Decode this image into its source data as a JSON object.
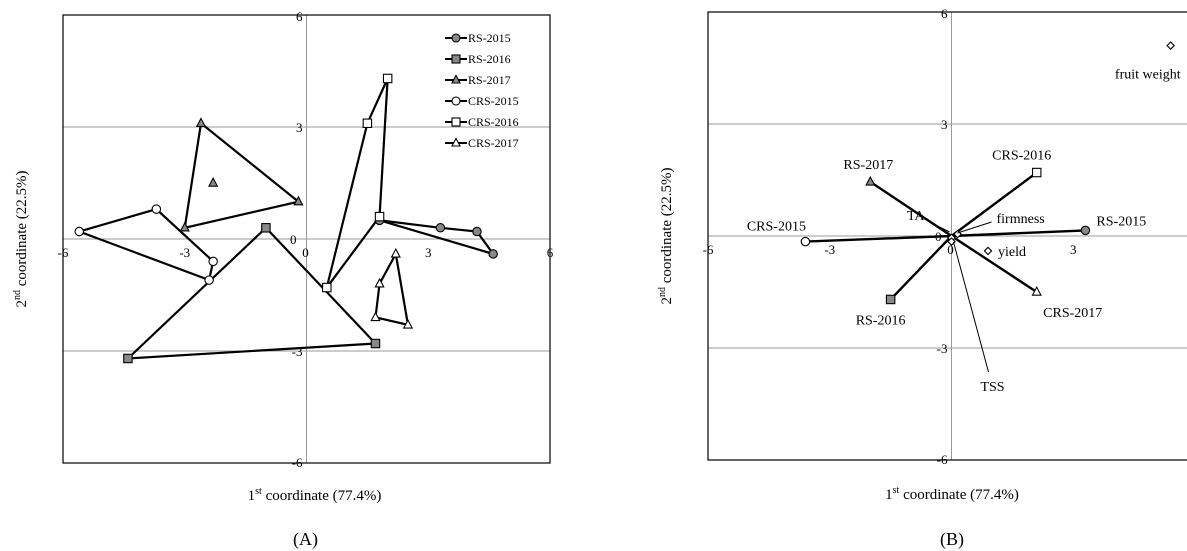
{
  "chart_data": [
    {
      "type": "scatter",
      "panel_label": "(A)",
      "xlabel": {
        "base": "1",
        "sup": "st",
        "rest": " coordinate (77.4%)"
      },
      "ylabel": {
        "base": "2",
        "sup": "nd",
        "rest": " coordinate (22.5%)"
      },
      "xlim": [
        -6,
        6
      ],
      "ylim": [
        -6,
        6
      ],
      "x_tick_labels": [
        "-6",
        "-3",
        "0",
        "3",
        "6"
      ],
      "y_tick_labels": [
        "6",
        "3",
        "0",
        "-3",
        "-6"
      ],
      "grid": true,
      "legend_position": "top-right",
      "series": [
        {
          "name": "RS-2015",
          "marker": "circle",
          "fill": "#888888",
          "points": [
            [
              1.8,
              0.5
            ],
            [
              3.3,
              0.3
            ],
            [
              4.2,
              0.2
            ],
            [
              4.6,
              -0.4
            ]
          ],
          "hull": [
            [
              1.8,
              0.5
            ],
            [
              3.3,
              0.3
            ],
            [
              4.2,
              0.2
            ],
            [
              4.6,
              -0.4
            ]
          ]
        },
        {
          "name": "RS-2016",
          "marker": "square",
          "fill": "#888888",
          "points": [
            [
              -1.0,
              0.3
            ],
            [
              1.7,
              -2.8
            ],
            [
              -4.4,
              -3.2
            ]
          ],
          "hull": [
            [
              -1.0,
              0.3
            ],
            [
              1.7,
              -2.8
            ],
            [
              -4.4,
              -3.2
            ]
          ]
        },
        {
          "name": "RS-2017",
          "marker": "triangle",
          "fill": "#888888",
          "points": [
            [
              -2.6,
              3.1
            ],
            [
              -2.3,
              1.5
            ],
            [
              -3.0,
              0.3
            ],
            [
              -0.2,
              1.0
            ]
          ],
          "hull": [
            [
              -2.6,
              3.1
            ],
            [
              -0.2,
              1.0
            ],
            [
              -3.0,
              0.3
            ]
          ]
        },
        {
          "name": "CRS-2015",
          "marker": "circle",
          "fill": "#ffffff",
          "points": [
            [
              -5.6,
              0.2
            ],
            [
              -3.7,
              0.8
            ],
            [
              -2.3,
              -0.6
            ],
            [
              -2.4,
              -1.1
            ]
          ],
          "hull": [
            [
              -5.6,
              0.2
            ],
            [
              -3.7,
              0.8
            ],
            [
              -2.3,
              -0.6
            ],
            [
              -2.4,
              -1.1
            ]
          ]
        },
        {
          "name": "CRS-2016",
          "marker": "square",
          "fill": "#ffffff",
          "points": [
            [
              1.5,
              3.1
            ],
            [
              2.0,
              4.3
            ],
            [
              1.8,
              0.6
            ],
            [
              0.5,
              -1.3
            ]
          ],
          "hull": [
            [
              1.5,
              3.1
            ],
            [
              2.0,
              4.3
            ],
            [
              1.8,
              0.6
            ],
            [
              0.5,
              -1.3
            ]
          ]
        },
        {
          "name": "CRS-2017",
          "marker": "triangle",
          "fill": "#ffffff",
          "points": [
            [
              2.2,
              -0.4
            ],
            [
              1.8,
              -1.2
            ],
            [
              1.7,
              -2.1
            ],
            [
              2.5,
              -2.3
            ]
          ],
          "hull": [
            [
              2.2,
              -0.4
            ],
            [
              1.8,
              -1.2
            ],
            [
              1.7,
              -2.1
            ],
            [
              2.5,
              -2.3
            ]
          ]
        }
      ]
    },
    {
      "type": "scatter",
      "panel_label": "(B)",
      "xlabel": {
        "base": "1",
        "sup": "st",
        "rest": " coordinate (77.4%)"
      },
      "ylabel": {
        "base": "2",
        "sup": "nd",
        "rest": " coordinate (22.5%)"
      },
      "xlim": [
        -6,
        6
      ],
      "ylim": [
        -6,
        6
      ],
      "x_tick_labels": [
        "-6",
        "-3",
        "0",
        "3"
      ],
      "y_tick_labels": [
        "6",
        "3",
        "0",
        "-3",
        "-6"
      ],
      "grid": true,
      "origin": [
        0,
        0
      ],
      "group_points": [
        {
          "label": "RS-2015",
          "marker": "circle",
          "fill": "#888888",
          "x": 3.3,
          "y": 0.15
        },
        {
          "label": "RS-2016",
          "marker": "square",
          "fill": "#888888",
          "x": -1.5,
          "y": -1.7
        },
        {
          "label": "RS-2017",
          "marker": "triangle",
          "fill": "#888888",
          "x": -2.0,
          "y": 1.45
        },
        {
          "label": "CRS-2015",
          "marker": "circle",
          "fill": "#ffffff",
          "x": -3.6,
          "y": -0.15
        },
        {
          "label": "CRS-2016",
          "marker": "square",
          "fill": "#ffffff",
          "x": 2.1,
          "y": 1.7
        },
        {
          "label": "CRS-2017",
          "marker": "triangle",
          "fill": "#ffffff",
          "x": 2.1,
          "y": -1.5
        }
      ],
      "variable_points": [
        {
          "label": "fruit weight",
          "x": 5.4,
          "y": 5.1
        },
        {
          "label": "yield",
          "x": 0.9,
          "y": -0.4
        },
        {
          "label": "firmness",
          "x": 0.15,
          "y": 0.05
        },
        {
          "label": "TA",
          "x": 0.0,
          "y": -0.05
        },
        {
          "label": "TSS",
          "x": 0.0,
          "y": -0.15
        }
      ]
    }
  ]
}
